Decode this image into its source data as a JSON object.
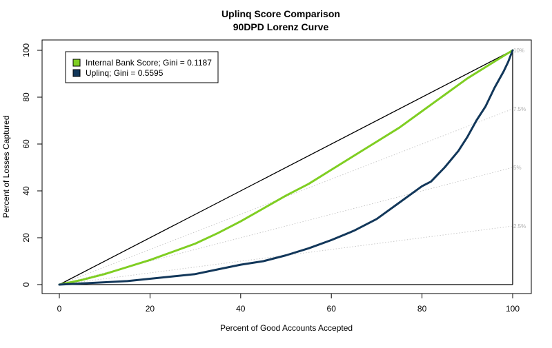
{
  "chart_data": {
    "type": "line",
    "title": "Uplinq Score Comparison",
    "subtitle": "90DPD Lorenz Curve",
    "xlabel": "Percent of Good Accounts Accepted",
    "ylabel": "Percent of Losses Captured",
    "xlim": [
      0,
      100
    ],
    "ylim": [
      0,
      100
    ],
    "xticks": [
      "0",
      "20",
      "40",
      "60",
      "80",
      "100"
    ],
    "yticks": [
      "0",
      "20",
      "40",
      "60",
      "80",
      "100"
    ],
    "legend_position": "top-left",
    "reference_lines": [
      {
        "label": "10%",
        "end_y": 100
      },
      {
        "label": "7.5%",
        "end_y": 75
      },
      {
        "label": "5%",
        "end_y": 50
      },
      {
        "label": "2.5%",
        "end_y": 25
      }
    ],
    "series": [
      {
        "name": "Internal Bank Score; Gini = 0.1187",
        "color": "#7fce22",
        "x": [
          0,
          5,
          10,
          15,
          20,
          25,
          30,
          35,
          40,
          45,
          50,
          55,
          60,
          65,
          70,
          75,
          80,
          85,
          90,
          95,
          100
        ],
        "y": [
          0,
          2,
          4.5,
          7.5,
          10.5,
          14,
          17.5,
          22,
          27,
          32.5,
          38,
          43,
          49,
          55,
          61,
          67,
          74,
          81,
          88,
          94,
          100
        ]
      },
      {
        "name": "Uplinq; Gini = 0.5595",
        "color": "#12375a",
        "x": [
          0,
          5,
          10,
          15,
          20,
          25,
          30,
          35,
          40,
          45,
          50,
          55,
          60,
          65,
          70,
          75,
          80,
          82,
          85,
          88,
          90,
          92,
          94,
          96,
          98,
          99,
          100
        ],
        "y": [
          0,
          0.5,
          1,
          1.5,
          2.5,
          3.5,
          4.5,
          6.5,
          8.5,
          10,
          12.5,
          15.5,
          19,
          23,
          28,
          35,
          42,
          44,
          50,
          57,
          63,
          70,
          76,
          84,
          91,
          95,
          100
        ]
      }
    ]
  }
}
